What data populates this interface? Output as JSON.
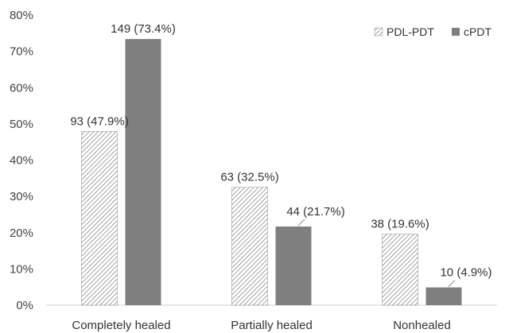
{
  "chart_data": {
    "type": "bar",
    "categories": [
      "Completely healed",
      "Partially healed",
      "Nonhealed"
    ],
    "series": [
      {
        "name": "PDL-PDT",
        "values": [
          47.9,
          32.5,
          19.6
        ],
        "labels": [
          "93 (47.9%)",
          "63 (32.5%)",
          "38 (19.6%)"
        ],
        "fill": "hatched",
        "color": "#8c8c8c"
      },
      {
        "name": "cPDT",
        "values": [
          73.4,
          21.7,
          4.9
        ],
        "labels": [
          "149 (73.4%)",
          "44 (21.7%)",
          "10 (4.9%)"
        ],
        "fill": "solid",
        "color": "#7f7f7f"
      }
    ],
    "y_ticks": [
      "0%",
      "10%",
      "20%",
      "30%",
      "40%",
      "50%",
      "60%",
      "70%",
      "80%"
    ],
    "ylim": [
      0,
      80
    ],
    "grid": false,
    "legend_position": "top-right",
    "title": "",
    "xlabel": "",
    "ylabel": ""
  }
}
